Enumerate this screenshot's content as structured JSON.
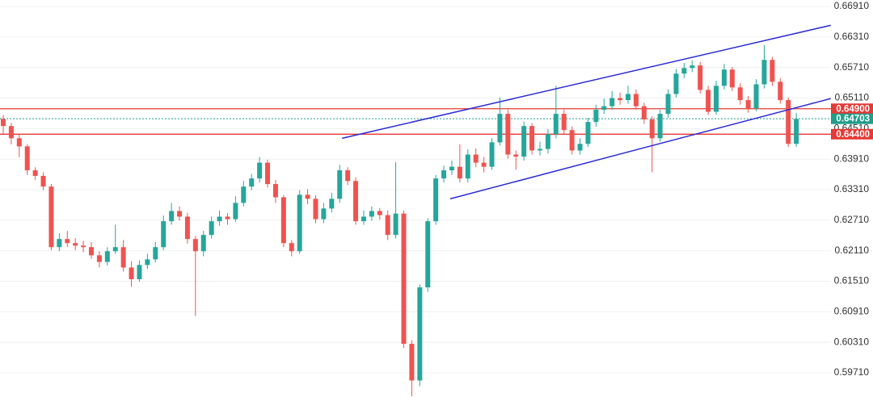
{
  "chart_data": {
    "type": "candlestick",
    "up_color": "#26a69a",
    "down_color": "#ef5350",
    "grid": true,
    "ylim": [
      0.59235,
      0.67037
    ],
    "yticks": [
      {
        "value": 0.6691,
        "label": "0.66910"
      },
      {
        "value": 0.6631,
        "label": "0.66310"
      },
      {
        "value": 0.6571,
        "label": "0.65710"
      },
      {
        "value": 0.6511,
        "label": "0.65110"
      },
      {
        "value": 0.6451,
        "label": "0.64510"
      },
      {
        "value": 0.6391,
        "label": "0.63910"
      },
      {
        "value": 0.6331,
        "label": "0.63310"
      },
      {
        "value": 0.6271,
        "label": "0.62710"
      },
      {
        "value": 0.6211,
        "label": "0.62110"
      },
      {
        "value": 0.6151,
        "label": "0.61510"
      },
      {
        "value": 0.6091,
        "label": "0.60910"
      },
      {
        "value": 0.6031,
        "label": "0.60310"
      },
      {
        "value": 0.5971,
        "label": "0.59710"
      }
    ],
    "open": [
      0.647,
      0.6456,
      0.6432,
      0.6416,
      0.6369,
      0.6358,
      0.6337,
      0.6218,
      0.6234,
      0.6226,
      0.6221,
      0.6218,
      0.6202,
      0.6189,
      0.621,
      0.6218,
      0.6178,
      0.6155,
      0.6183,
      0.6194,
      0.6218,
      0.6269,
      0.6289,
      0.6278,
      0.6234,
      0.621,
      0.6242,
      0.6269,
      0.6278,
      0.6273,
      0.6305,
      0.6337,
      0.6353,
      0.6384,
      0.6342,
      0.6316,
      0.6226,
      0.621,
      0.6321,
      0.6313,
      0.6273,
      0.6294,
      0.6313,
      0.6369,
      0.6348,
      0.6269,
      0.6278,
      0.6289,
      0.6281,
      0.6242,
      0.6284,
      0.6028,
      0.5956,
      0.6139,
      0.6269,
      0.6353,
      0.6369,
      0.6376,
      0.6353,
      0.64,
      0.6384,
      0.6376,
      0.6424,
      0.648,
      0.64,
      0.6396,
      0.6456,
      0.6408,
      0.6411,
      0.644,
      0.648,
      0.6448,
      0.6408,
      0.6421,
      0.6464,
      0.6488,
      0.6495,
      0.6511,
      0.6507,
      0.6519,
      0.6495,
      0.6469,
      0.6432,
      0.648,
      0.6519,
      0.6559,
      0.657,
      0.6575,
      0.6527,
      0.6484,
      0.6535,
      0.6567,
      0.6532,
      0.6507,
      0.6491,
      0.6538,
      0.6586,
      0.6543,
      0.6507,
      0.6421
    ],
    "high": [
      0.6478,
      0.6462,
      0.644,
      0.642,
      0.6375,
      0.6365,
      0.6342,
      0.6245,
      0.625,
      0.6236,
      0.623,
      0.6228,
      0.621,
      0.6218,
      0.6262,
      0.6232,
      0.619,
      0.6192,
      0.6205,
      0.6228,
      0.628,
      0.6305,
      0.6298,
      0.6285,
      0.624,
      0.625,
      0.6278,
      0.629,
      0.6285,
      0.6318,
      0.6348,
      0.6362,
      0.6395,
      0.639,
      0.635,
      0.632,
      0.6232,
      0.633,
      0.6332,
      0.632,
      0.6305,
      0.6325,
      0.638,
      0.6375,
      0.6355,
      0.629,
      0.6298,
      0.6295,
      0.629,
      0.6385,
      0.629,
      0.6035,
      0.6145,
      0.6275,
      0.636,
      0.6378,
      0.6388,
      0.642,
      0.641,
      0.6412,
      0.6395,
      0.6432,
      0.6512,
      0.6488,
      0.6408,
      0.6465,
      0.6462,
      0.6425,
      0.645,
      0.6535,
      0.6488,
      0.6455,
      0.6432,
      0.6472,
      0.6498,
      0.651,
      0.6525,
      0.6522,
      0.6535,
      0.6528,
      0.6502,
      0.6475,
      0.6488,
      0.6528,
      0.6568,
      0.658,
      0.6585,
      0.6582,
      0.6535,
      0.6545,
      0.6578,
      0.6572,
      0.654,
      0.6515,
      0.6548,
      0.6615,
      0.6592,
      0.655,
      0.6512,
      0.6482
    ],
    "low": [
      0.644,
      0.642,
      0.6395,
      0.636,
      0.635,
      0.633,
      0.6212,
      0.621,
      0.6218,
      0.6212,
      0.6208,
      0.6195,
      0.6178,
      0.6182,
      0.6205,
      0.617,
      0.614,
      0.615,
      0.6175,
      0.6188,
      0.6212,
      0.6262,
      0.627,
      0.6225,
      0.6083,
      0.62,
      0.6235,
      0.626,
      0.6262,
      0.6268,
      0.6298,
      0.633,
      0.6345,
      0.6335,
      0.6305,
      0.6218,
      0.62,
      0.6205,
      0.6302,
      0.6265,
      0.6265,
      0.6286,
      0.6305,
      0.634,
      0.6262,
      0.6262,
      0.627,
      0.6272,
      0.6232,
      0.6235,
      0.602,
      0.5925,
      0.5945,
      0.613,
      0.6262,
      0.6345,
      0.636,
      0.6345,
      0.6345,
      0.6375,
      0.6365,
      0.637,
      0.6418,
      0.6392,
      0.637,
      0.6388,
      0.64,
      0.6398,
      0.6402,
      0.6432,
      0.644,
      0.64,
      0.64,
      0.6415,
      0.6455,
      0.648,
      0.6488,
      0.6498,
      0.65,
      0.6488,
      0.646,
      0.6365,
      0.6425,
      0.6472,
      0.6512,
      0.655,
      0.6562,
      0.652,
      0.6478,
      0.6478,
      0.6528,
      0.6525,
      0.6498,
      0.6482,
      0.6485,
      0.653,
      0.6535,
      0.65,
      0.6415,
      0.6415
    ],
    "close": [
      0.6456,
      0.6432,
      0.6416,
      0.6369,
      0.6358,
      0.6337,
      0.6218,
      0.6234,
      0.6226,
      0.6221,
      0.6218,
      0.6202,
      0.6189,
      0.621,
      0.6218,
      0.6178,
      0.6155,
      0.6183,
      0.6194,
      0.6218,
      0.6269,
      0.6289,
      0.6278,
      0.6234,
      0.621,
      0.6242,
      0.6269,
      0.6278,
      0.6273,
      0.6305,
      0.6337,
      0.6353,
      0.6384,
      0.6342,
      0.6316,
      0.6226,
      0.621,
      0.6321,
      0.6313,
      0.6273,
      0.6294,
      0.6313,
      0.6369,
      0.6348,
      0.6269,
      0.6278,
      0.6289,
      0.6281,
      0.6242,
      0.6284,
      0.6028,
      0.5956,
      0.6139,
      0.6269,
      0.6353,
      0.6369,
      0.6376,
      0.6353,
      0.64,
      0.6384,
      0.6376,
      0.6424,
      0.648,
      0.64,
      0.6396,
      0.6456,
      0.6408,
      0.6411,
      0.644,
      0.648,
      0.6448,
      0.6408,
      0.6421,
      0.6464,
      0.6488,
      0.6495,
      0.6511,
      0.6507,
      0.6519,
      0.6495,
      0.6469,
      0.6432,
      0.648,
      0.6519,
      0.6559,
      0.657,
      0.6575,
      0.6527,
      0.6484,
      0.6535,
      0.6567,
      0.6532,
      0.6507,
      0.6491,
      0.6538,
      0.6586,
      0.6543,
      0.6507,
      0.6421,
      0.647
    ],
    "trendlines": [
      {
        "start_index": 42.3,
        "start_price": 0.6432,
        "end_index": 103.3,
        "end_price": 0.6654,
        "color": "#2b2bd6"
      },
      {
        "start_index": 55.8,
        "start_price": 0.6313,
        "end_index": 103.3,
        "end_price": 0.651,
        "color": "#2b2bd6"
      }
    ],
    "levels": [
      {
        "value": 0.649,
        "label": "0.64900",
        "color": "#e53935",
        "style": "solid"
      },
      {
        "value": 0.644,
        "label": "0.64400",
        "color": "#e53935",
        "style": "solid"
      },
      {
        "value": 0.64703,
        "label": "0.64703",
        "color": "#1f9e8a",
        "style": "dashed"
      }
    ]
  }
}
